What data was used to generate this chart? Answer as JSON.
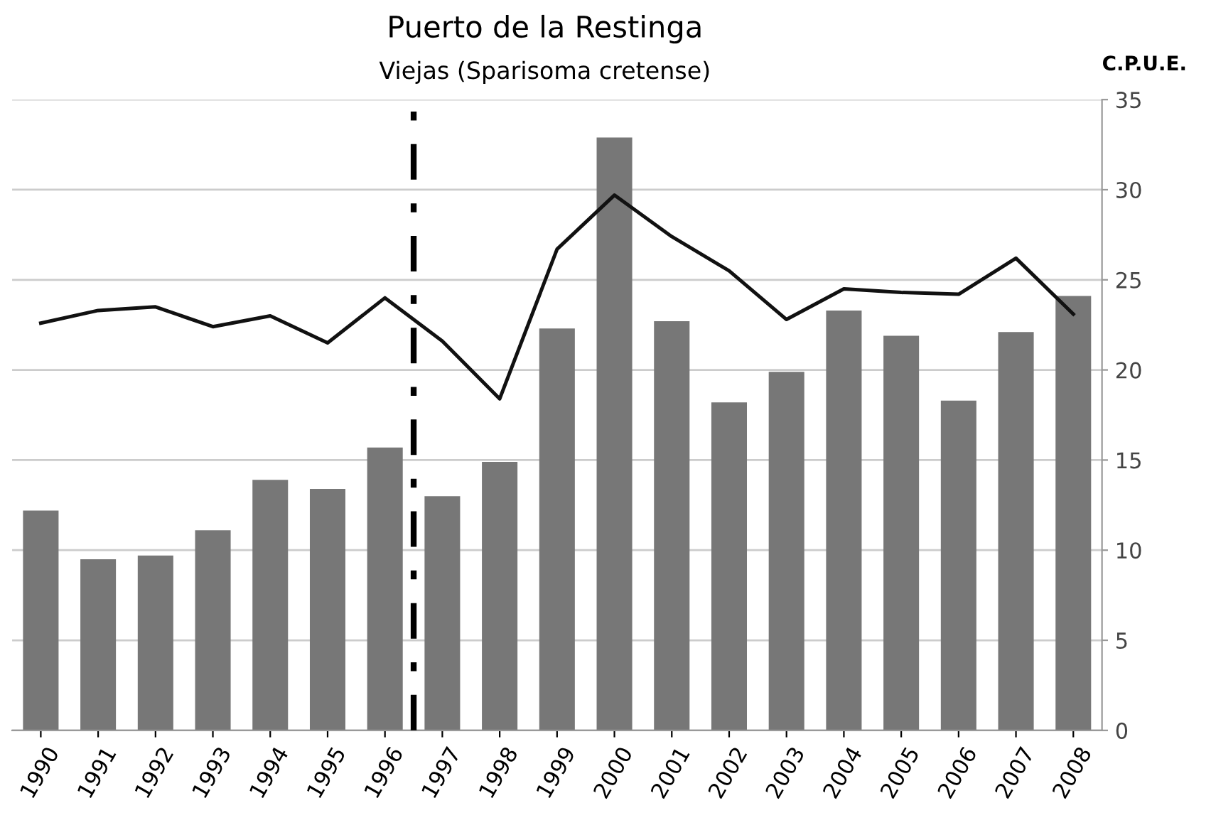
{
  "chart_data": {
    "type": "bar",
    "title": "Puerto de la Restinga",
    "subtitle": "Viejas (Sparisoma cretense)",
    "ylabel": "C.P.U.E.",
    "x": [
      1990,
      1991,
      1992,
      1993,
      1994,
      1995,
      1996,
      1997,
      1998,
      1999,
      2000,
      2001,
      2002,
      2003,
      2004,
      2005,
      2006,
      2007,
      2008
    ],
    "series": [
      {
        "color": "#777777",
        "values": [
          12.2,
          9.5,
          9.7,
          11.1,
          13.9,
          13.4,
          15.7,
          13.0,
          14.9,
          22.3,
          32.9,
          22.7,
          18.2,
          19.9,
          23.3,
          21.9,
          18.3,
          22.1,
          24.1
        ]
      },
      {
        "type": "line",
        "color": "#111111",
        "marker": "none",
        "line_style": "solid",
        "values": [
          22.6,
          23.3,
          23.5,
          22.4,
          23.0,
          21.5,
          24.0,
          21.6,
          18.4,
          26.7,
          29.7,
          27.4,
          25.5,
          22.8,
          24.5,
          24.3,
          24.2,
          26.2,
          23.1
        ]
      }
    ],
    "xlim": [
      1989.5,
      2008.5
    ],
    "xticks": [
      1990,
      1991,
      1992,
      1993,
      1994,
      1995,
      1996,
      1997,
      1998,
      1999,
      2000,
      2001,
      2002,
      2003,
      2004,
      2005,
      2006,
      2007,
      2008
    ],
    "ylim": [
      0,
      35
    ],
    "yticks": [
      0,
      5,
      10,
      15,
      20,
      25,
      30,
      35
    ],
    "grid": "y",
    "ref_lines": [
      {
        "axis": "x",
        "value": 1996.5,
        "color": "#000000",
        "line_style": "dashdot"
      }
    ]
  }
}
